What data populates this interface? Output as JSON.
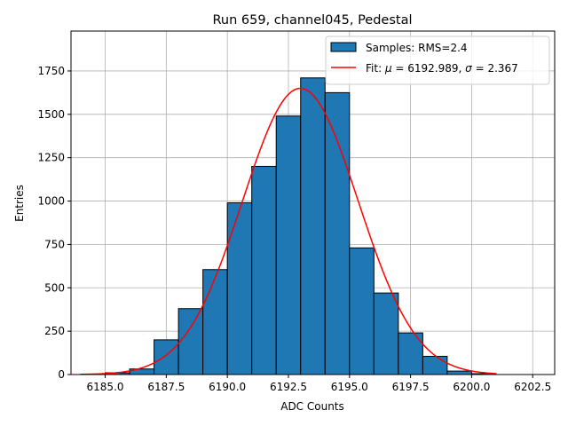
{
  "chart_data": {
    "type": "bar",
    "title": "Run 659, channel045, Pedestal",
    "xlabel": "ADC Counts",
    "ylabel": "Entries",
    "xlim": [
      6183.6,
      6203.4
    ],
    "ylim": [
      0,
      1980
    ],
    "x_ticks": [
      6185.0,
      6187.5,
      6190.0,
      6192.5,
      6195.0,
      6197.5,
      6200.0,
      6202.5
    ],
    "x_tick_labels": [
      "6185.0",
      "6187.5",
      "6190.0",
      "6192.5",
      "6195.0",
      "6197.5",
      "6200.0",
      "6202.5"
    ],
    "y_ticks": [
      0,
      250,
      500,
      750,
      1000,
      1250,
      1500,
      1750
    ],
    "y_tick_labels": [
      "0",
      "250",
      "500",
      "750",
      "1000",
      "1250",
      "1500",
      "1750"
    ],
    "grid": true,
    "legend_position": "top-right",
    "bin_edges": [
      6184,
      6185,
      6186,
      6187,
      6188,
      6189,
      6190,
      6191,
      6192,
      6193,
      6194,
      6195,
      6196,
      6197,
      6198,
      6199,
      6200,
      6201
    ],
    "counts": [
      2,
      10,
      32,
      200,
      380,
      605,
      990,
      1200,
      1490,
      1710,
      1625,
      730,
      470,
      240,
      105,
      20,
      5
    ],
    "fit": {
      "mu": 6192.989,
      "sigma": 2.367,
      "amplitude": 1650,
      "x_range": [
        6184.0,
        6201.0
      ]
    },
    "series": [
      {
        "name": "Samples: RMS=2.4",
        "kind": "histogram",
        "color": "#1f77b4",
        "edgecolor": "#000000"
      },
      {
        "name": "Fit: μ = 6192.989, σ = 2.367",
        "kind": "line",
        "color": "#ff0000"
      }
    ]
  },
  "legend": {
    "samples_label": "Samples: RMS=2.4",
    "fit_prefix": "Fit: ",
    "mu_symbol": "μ",
    "mu_text": " = 6192.989, ",
    "sigma_symbol": "σ",
    "sigma_text": " = 2.367"
  }
}
